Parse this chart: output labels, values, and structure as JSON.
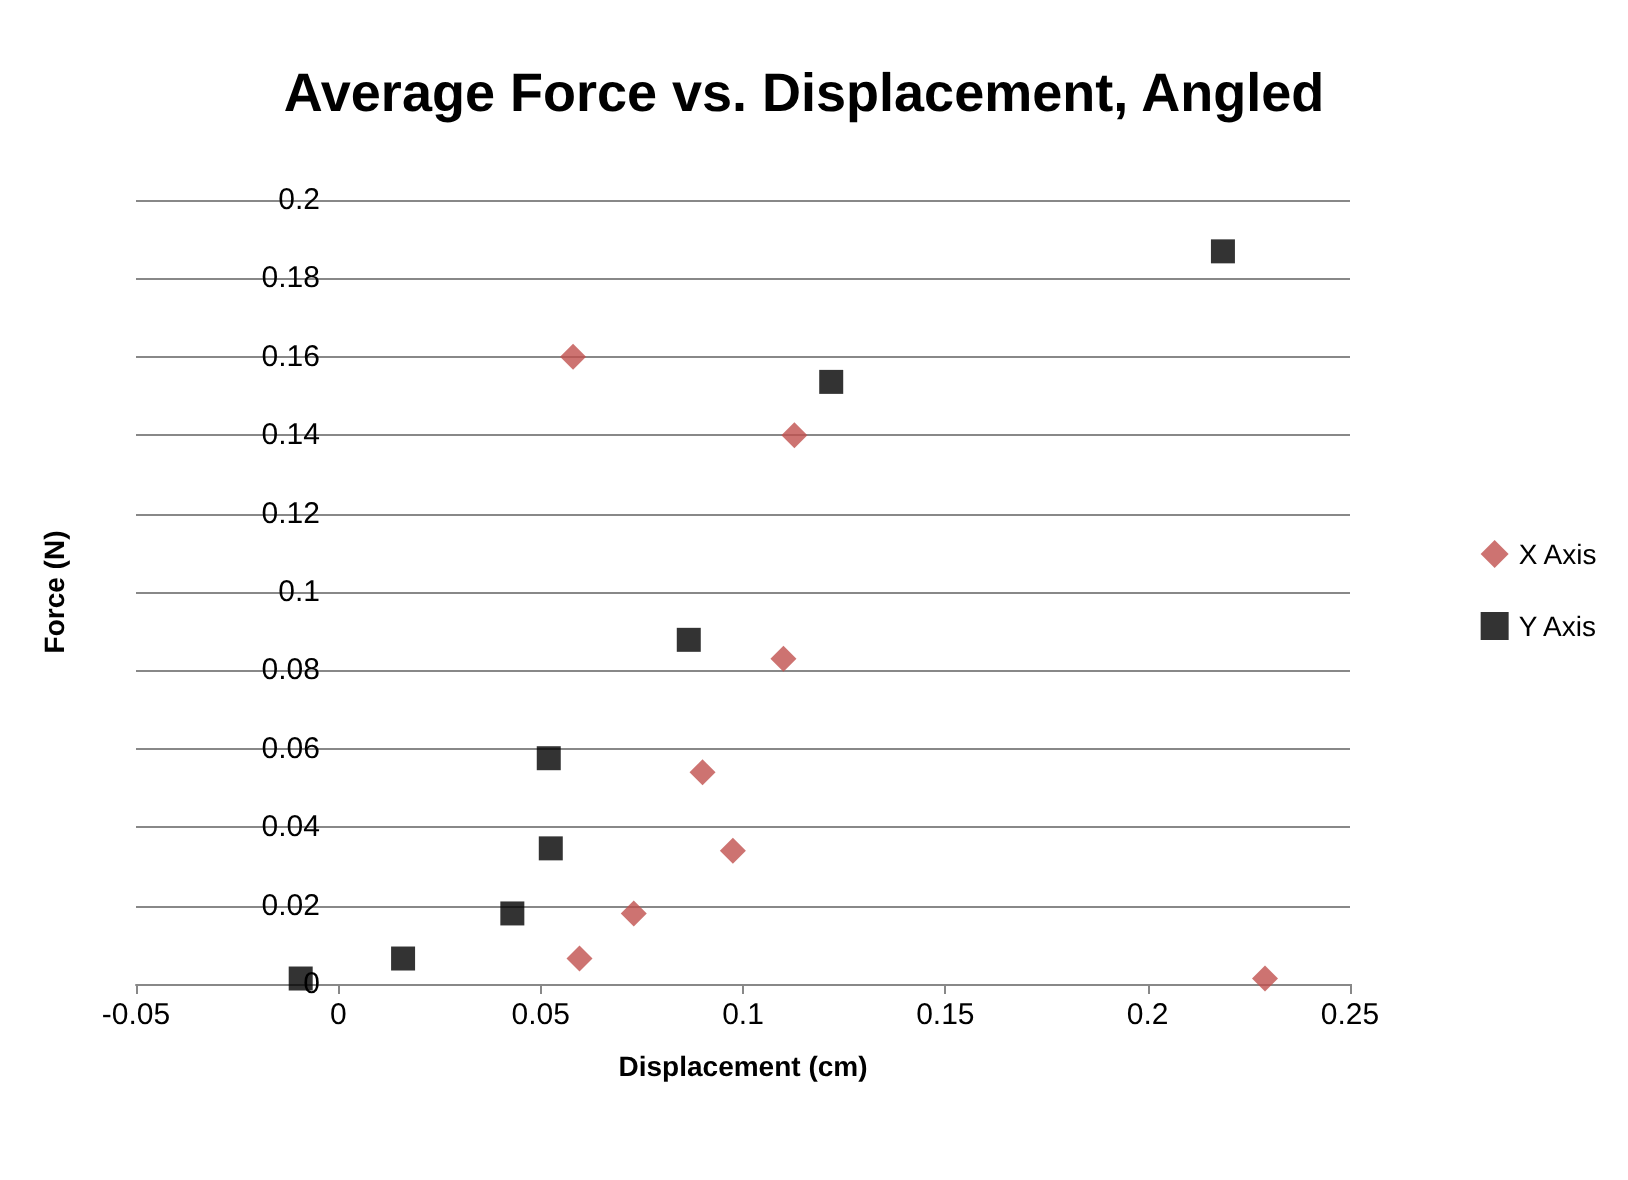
{
  "chart_data": {
    "type": "scatter",
    "title": "Average Force vs. Displacement, Angled",
    "xlabel": "Displacement (cm)",
    "ylabel": "Force (N)",
    "xlim": [
      -0.05,
      0.25
    ],
    "xticks": [
      -0.05,
      0,
      0.05,
      0.1,
      0.15,
      0.2,
      0.25
    ],
    "ylim": [
      0,
      0.2
    ],
    "yticks": [
      0,
      0.02,
      0.04,
      0.06,
      0.08,
      0.1,
      0.12,
      0.14,
      0.16,
      0.18,
      0.2
    ],
    "grid": "y",
    "legend": "right",
    "series": [
      {
        "name": "X Axis",
        "color": "#c0504d",
        "marker": "diamond",
        "x": [
          0.058,
          0.09,
          0.0975,
          0.073,
          0.0596,
          0.1127,
          0.11,
          0.229
        ],
        "values": [
          0.16,
          0.054,
          0.034,
          0.018,
          0.0065,
          0.14,
          0.083,
          0.0014
        ]
      },
      {
        "name": "Y Axis",
        "color": "#000000",
        "marker": "square",
        "x": [
          -0.0093,
          0.016,
          0.043,
          0.0525,
          0.052,
          0.0866,
          0.1218,
          0.2186
        ],
        "values": [
          0.0014,
          0.0065,
          0.018,
          0.0346,
          0.0576,
          0.0878,
          0.1536,
          0.1869
        ]
      }
    ]
  }
}
